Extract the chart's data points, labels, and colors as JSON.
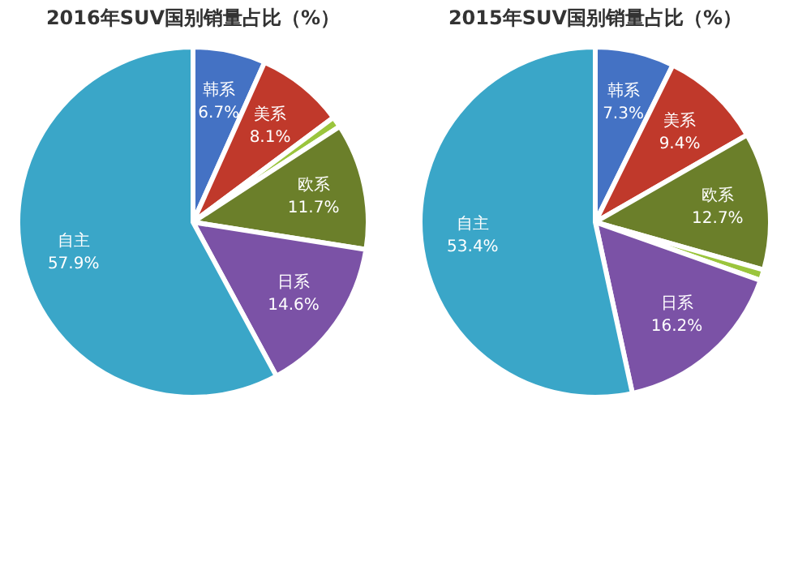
{
  "chart_data": [
    {
      "type": "pie",
      "title": "2016年SUV国别销量占比（%）",
      "categories": [
        "韩系",
        "美系",
        null,
        "欧系",
        "日系",
        "自主"
      ],
      "values": [
        6.7,
        8.1,
        1.0,
        11.7,
        14.6,
        57.9
      ],
      "colors": [
        "#4472c4",
        "#c0392b",
        "#9bc53d",
        "#6b7f2a",
        "#7b52a6",
        "#3aa6c8"
      ],
      "value_labels": [
        "6.7%",
        "8.1%",
        null,
        "11.7%",
        "14.6%",
        "57.9%"
      ]
    },
    {
      "type": "pie",
      "title": "2015年SUV国别销量占比（%）",
      "categories": [
        "韩系",
        "美系",
        "欧系",
        null,
        "日系",
        "自主"
      ],
      "values": [
        7.3,
        9.4,
        12.7,
        1.0,
        16.2,
        53.4
      ],
      "colors": [
        "#4472c4",
        "#c0392b",
        "#6b7f2a",
        "#9bc53d",
        "#7b52a6",
        "#3aa6c8"
      ],
      "value_labels": [
        "7.3%",
        "9.4%",
        "12.7%",
        null,
        "16.2%",
        "53.4%"
      ]
    }
  ]
}
